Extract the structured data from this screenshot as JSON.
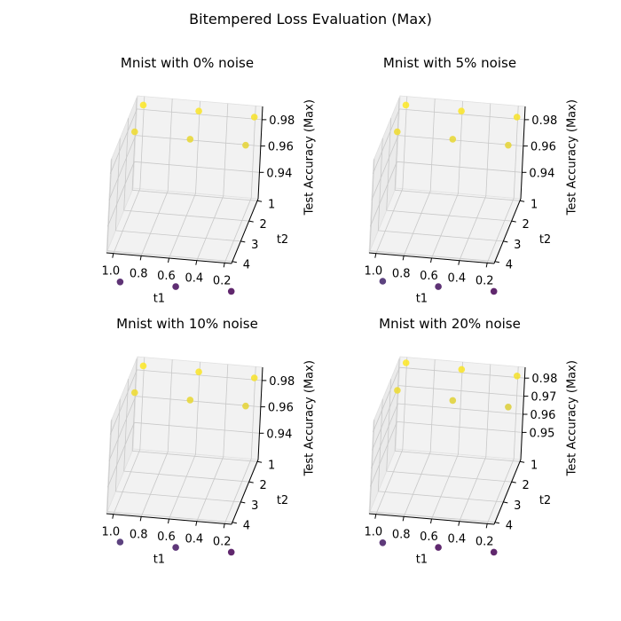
{
  "figure": {
    "title": "Bitempered Loss Evaluation (Max)"
  },
  "colors": {
    "viridis_low": "#440154",
    "viridis_mid": "#3b528b",
    "viridis_high": "#fde725",
    "pane": "#f2f2f2",
    "pane_side": "#ebebeb",
    "grid": "#c8c8c8"
  },
  "chart_data": [
    {
      "type": "scatter3d",
      "title": "Mnist with 0% noise",
      "xlabel": "t1",
      "ylabel": "t2",
      "zlabel": "Test Accuracy (Max)",
      "xticks": [
        "1.0",
        "0.8",
        "0.6",
        "0.4",
        "0.2"
      ],
      "yticks": [
        "1",
        "2",
        "3",
        "4"
      ],
      "zticks": [
        "0.94",
        "0.96",
        "0.98"
      ],
      "xlim": [
        0.15,
        1.05
      ],
      "ylim": [
        0.9,
        4.1
      ],
      "zlim": [
        0.92,
        0.99
      ],
      "points": [
        {
          "t1": 1.0,
          "t2": 1,
          "acc": 0.985
        },
        {
          "t1": 0.6,
          "t2": 1,
          "acc": 0.984
        },
        {
          "t1": 0.2,
          "t2": 1,
          "acc": 0.983
        },
        {
          "t1": 1.0,
          "t2": 2,
          "acc": 0.98
        },
        {
          "t1": 0.6,
          "t2": 2,
          "acc": 0.978
        },
        {
          "t1": 0.2,
          "t2": 2,
          "acc": 0.977
        },
        {
          "t1": 1.0,
          "t2": 3,
          "acc": 0.868
        },
        {
          "t1": 0.6,
          "t2": 3,
          "acc": 0.864
        },
        {
          "t1": 0.2,
          "t2": 3,
          "acc": 0.857
        }
      ]
    },
    {
      "type": "scatter3d",
      "title": "Mnist with 5% noise",
      "xlabel": "t1",
      "ylabel": "t2",
      "zlabel": "Test Accuracy (Max)",
      "xticks": [
        "1.0",
        "0.8",
        "0.6",
        "0.4",
        "0.2"
      ],
      "yticks": [
        "1",
        "2",
        "3",
        "4"
      ],
      "zticks": [
        "0.94",
        "0.96",
        "0.98"
      ],
      "xlim": [
        0.15,
        1.05
      ],
      "ylim": [
        0.9,
        4.1
      ],
      "zlim": [
        0.92,
        0.99
      ],
      "points": [
        {
          "t1": 1.0,
          "t2": 1,
          "acc": 0.985
        },
        {
          "t1": 0.6,
          "t2": 1,
          "acc": 0.984
        },
        {
          "t1": 0.2,
          "t2": 1,
          "acc": 0.983
        },
        {
          "t1": 1.0,
          "t2": 2,
          "acc": 0.98
        },
        {
          "t1": 0.6,
          "t2": 2,
          "acc": 0.978
        },
        {
          "t1": 0.2,
          "t2": 2,
          "acc": 0.977
        },
        {
          "t1": 1.0,
          "t2": 3,
          "acc": 0.882
        },
        {
          "t1": 0.6,
          "t2": 3,
          "acc": 0.868
        },
        {
          "t1": 0.2,
          "t2": 3,
          "acc": 0.857
        }
      ]
    },
    {
      "type": "scatter3d",
      "title": "Mnist with 10% noise",
      "xlabel": "t1",
      "ylabel": "t2",
      "zlabel": "Test Accuracy (Max)",
      "xticks": [
        "1.0",
        "0.8",
        "0.6",
        "0.4",
        "0.2"
      ],
      "yticks": [
        "1",
        "2",
        "3",
        "4"
      ],
      "zticks": [
        "0.94",
        "0.96",
        "0.98"
      ],
      "xlim": [
        0.15,
        1.05
      ],
      "ylim": [
        0.9,
        4.1
      ],
      "zlim": [
        0.92,
        0.99
      ],
      "points": [
        {
          "t1": 1.0,
          "t2": 1,
          "acc": 0.985
        },
        {
          "t1": 0.6,
          "t2": 1,
          "acc": 0.984
        },
        {
          "t1": 0.2,
          "t2": 1,
          "acc": 0.983
        },
        {
          "t1": 1.0,
          "t2": 2,
          "acc": 0.98
        },
        {
          "t1": 0.6,
          "t2": 2,
          "acc": 0.978
        },
        {
          "t1": 0.2,
          "t2": 2,
          "acc": 0.977
        },
        {
          "t1": 1.0,
          "t2": 3,
          "acc": 0.882
        },
        {
          "t1": 0.6,
          "t2": 3,
          "acc": 0.872
        },
        {
          "t1": 0.2,
          "t2": 3,
          "acc": 0.857
        }
      ]
    },
    {
      "type": "scatter3d",
      "title": "Mnist with 20% noise",
      "xlabel": "t1",
      "ylabel": "t2",
      "zlabel": "Test Accuracy (Max)",
      "xticks": [
        "1.0",
        "0.8",
        "0.6",
        "0.4",
        "0.2"
      ],
      "yticks": [
        "1",
        "2",
        "3",
        "4"
      ],
      "zticks": [
        "0.95",
        "0.96",
        "0.97",
        "0.98"
      ],
      "xlim": [
        0.15,
        1.05
      ],
      "ylim": [
        0.9,
        4.1
      ],
      "zlim": [
        0.935,
        0.986
      ],
      "points": [
        {
          "t1": 1.0,
          "t2": 1,
          "acc": 0.984
        },
        {
          "t1": 0.6,
          "t2": 1,
          "acc": 0.983
        },
        {
          "t1": 0.2,
          "t2": 1,
          "acc": 0.982
        },
        {
          "t1": 1.0,
          "t2": 2,
          "acc": 0.98
        },
        {
          "t1": 0.6,
          "t2": 2,
          "acc": 0.977
        },
        {
          "t1": 0.2,
          "t2": 2,
          "acc": 0.976
        },
        {
          "t1": 1.0,
          "t2": 3,
          "acc": 0.902
        },
        {
          "t1": 0.6,
          "t2": 3,
          "acc": 0.891
        },
        {
          "t1": 0.2,
          "t2": 3,
          "acc": 0.889
        }
      ]
    }
  ]
}
